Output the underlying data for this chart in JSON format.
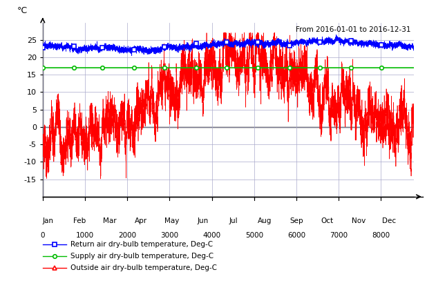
{
  "title_annotation": "From 2016-01-01 to 2016-12-31",
  "ylabel": "°C",
  "ylim": [
    -20,
    30
  ],
  "yticks": [
    -15,
    -10,
    -5,
    0,
    5,
    10,
    15,
    20,
    25
  ],
  "xlim": [
    0,
    8784
  ],
  "month_hours": [
    120,
    864,
    1584,
    2328,
    3048,
    3792,
    4512,
    5256,
    6000,
    6720,
    7464,
    8184
  ],
  "month_labels": [
    "Jan",
    "Feb",
    "Mar",
    "Apr",
    "May",
    "Jun",
    "Jul",
    "Aug",
    "Sep",
    "Oct",
    "Nov",
    "Dec"
  ],
  "numeric_ticks": [
    0,
    1000,
    2000,
    3000,
    4000,
    5000,
    6000,
    7000,
    8000
  ],
  "supply_air_temp": 17.0,
  "marker_hours": [
    0,
    744,
    1416,
    2160,
    2880,
    3624,
    4344,
    5088,
    5832,
    6552,
    7296,
    8016
  ],
  "return_air_color": "#0000FF",
  "supply_air_color": "#00BB00",
  "outside_air_color": "#FF0000",
  "bg_color": "#FFFFFF",
  "grid_color": "#AAAACC",
  "legend_items": [
    {
      "label": "Return air dry-bulb temperature, Deg-C",
      "color": "#0000FF",
      "marker": "s"
    },
    {
      "label": "Supply air dry-bulb temperature, Deg-C",
      "color": "#00BB00",
      "marker": "o"
    },
    {
      "label": "Outside air dry-bulb temperature, Deg-C",
      "color": "#FF0000",
      "marker": "^"
    }
  ]
}
